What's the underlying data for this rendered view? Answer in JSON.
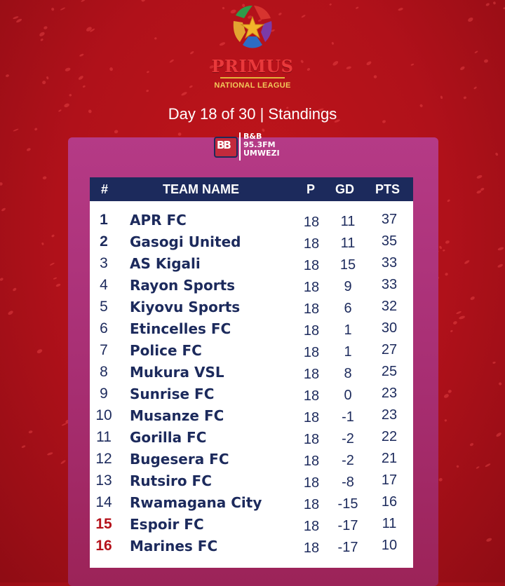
{
  "brand": {
    "name": "PRIMUS",
    "subtitle": "NATIONAL LEAGUE",
    "colors": {
      "red": "#e9393b",
      "gold": "#f2c95a",
      "background": "#b0111a",
      "navy": "#1c2a5c",
      "panel": "#a72e72"
    }
  },
  "header": {
    "title": "Day 18 of 30 | Standings"
  },
  "sponsor": {
    "icon": "bb-logo-icon",
    "lines": [
      "B&B",
      "95.3FM",
      "UMWEZI"
    ]
  },
  "table": {
    "columns": {
      "num": "#",
      "team": "TEAM NAME",
      "p": "P",
      "gd": "GD",
      "pts": "PTS"
    },
    "rows": [
      {
        "pos": "1",
        "team": "APR FC",
        "p": "18",
        "gd": "11",
        "pts": "37",
        "zone": "top"
      },
      {
        "pos": "2",
        "team": "Gasogi United",
        "p": "18",
        "gd": "11",
        "pts": "35",
        "zone": "top"
      },
      {
        "pos": "3",
        "team": "AS Kigali",
        "p": "18",
        "gd": "15",
        "pts": "33",
        "zone": ""
      },
      {
        "pos": "4",
        "team": "Rayon Sports",
        "p": "18",
        "gd": "9",
        "pts": "33",
        "zone": ""
      },
      {
        "pos": "5",
        "team": "Kiyovu Sports",
        "p": "18",
        "gd": "6",
        "pts": "32",
        "zone": ""
      },
      {
        "pos": "6",
        "team": "Etincelles FC",
        "p": "18",
        "gd": "1",
        "pts": "30",
        "zone": ""
      },
      {
        "pos": "7",
        "team": "Police FC",
        "p": "18",
        "gd": "1",
        "pts": "27",
        "zone": ""
      },
      {
        "pos": "8",
        "team": "Mukura VSL",
        "p": "18",
        "gd": "8",
        "pts": "25",
        "zone": ""
      },
      {
        "pos": "9",
        "team": "Sunrise FC",
        "p": "18",
        "gd": "0",
        "pts": "23",
        "zone": ""
      },
      {
        "pos": "10",
        "team": "Musanze FC",
        "p": "18",
        "gd": "-1",
        "pts": "23",
        "zone": ""
      },
      {
        "pos": "11",
        "team": "Gorilla FC",
        "p": "18",
        "gd": "-2",
        "pts": "22",
        "zone": ""
      },
      {
        "pos": "12",
        "team": "Bugesera FC",
        "p": "18",
        "gd": "-2",
        "pts": "21",
        "zone": ""
      },
      {
        "pos": "13",
        "team": "Rutsiro FC",
        "p": "18",
        "gd": "-8",
        "pts": "17",
        "zone": ""
      },
      {
        "pos": "14",
        "team": "Rwamagana City",
        "p": "18",
        "gd": "-15",
        "pts": "16",
        "zone": ""
      },
      {
        "pos": "15",
        "team": "Espoir FC",
        "p": "18",
        "gd": "-17",
        "pts": "11",
        "zone": "relegation"
      },
      {
        "pos": "16",
        "team": "Marines FC",
        "p": "18",
        "gd": "-17",
        "pts": "10",
        "zone": "relegation"
      }
    ]
  }
}
